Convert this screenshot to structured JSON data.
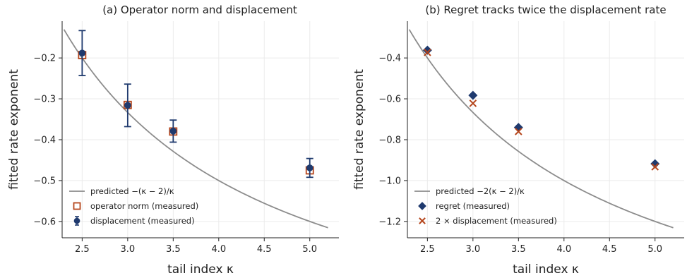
{
  "chart_data": [
    {
      "type": "scatter",
      "title": "(a) Operator norm and displacement",
      "xlabel": "tail index κ",
      "ylabel": "fitted rate exponent",
      "xlim": [
        2.28,
        5.32
      ],
      "ylim": [
        -0.64,
        -0.11
      ],
      "xticks": [
        2.5,
        3.0,
        3.5,
        4.0,
        4.5,
        5.0
      ],
      "xtick_labels": [
        "2.5",
        "3.0",
        "3.5",
        "4.0",
        "4.5",
        "5.0"
      ],
      "yticks": [
        -0.2,
        -0.3,
        -0.4,
        -0.5,
        -0.6
      ],
      "ytick_labels": [
        "−0.2",
        "−0.3",
        "−0.4",
        "−0.5",
        "−0.6"
      ],
      "grid": true,
      "legend_position": "lower-left",
      "curve": {
        "name": "predicted −(κ − 2)/κ",
        "formula": "-(k-2)/k",
        "x_range": [
          2.3,
          5.2
        ],
        "color": "#8c8c8c"
      },
      "series": [
        {
          "name": "operator norm (measured)",
          "marker": "open-square",
          "color": "#b5451b",
          "x": [
            2.5,
            3.0,
            3.5,
            5.0
          ],
          "y": [
            -0.193,
            -0.315,
            -0.38,
            -0.475
          ]
        },
        {
          "name": "displacement (measured)",
          "marker": "filled-circle",
          "color": "#1f3a6e",
          "x": [
            2.5,
            3.0,
            3.5,
            5.0
          ],
          "y": [
            -0.188,
            -0.316,
            -0.379,
            -0.469
          ],
          "err": [
            0.055,
            0.052,
            0.027,
            0.023
          ]
        }
      ]
    },
    {
      "type": "scatter",
      "title": "(b) Regret tracks twice the displacement rate",
      "xlabel": "tail index κ",
      "ylabel": "fitted rate exponent",
      "xlim": [
        2.28,
        5.32
      ],
      "ylim": [
        -1.28,
        -0.22
      ],
      "xticks": [
        2.5,
        3.0,
        3.5,
        4.0,
        4.5,
        5.0
      ],
      "xtick_labels": [
        "2.5",
        "3.0",
        "3.5",
        "4.0",
        "4.5",
        "5.0"
      ],
      "yticks": [
        -0.4,
        -0.6,
        -0.8,
        -1.0,
        -1.2
      ],
      "ytick_labels": [
        "−0.4",
        "−0.6",
        "−0.8",
        "−1.0",
        "−1.2"
      ],
      "grid": true,
      "legend_position": "lower-left",
      "curve": {
        "name": "predicted −2(κ − 2)/κ",
        "formula": "-2(k-2)/k",
        "x_range": [
          2.3,
          5.2
        ],
        "color": "#8c8c8c"
      },
      "series": [
        {
          "name": "regret (measured)",
          "marker": "filled-diamond",
          "color": "#1f3a6e",
          "x": [
            2.5,
            3.0,
            3.5,
            5.0
          ],
          "y": [
            -0.362,
            -0.583,
            -0.74,
            -0.918
          ]
        },
        {
          "name": "2 × displacement (measured)",
          "marker": "x",
          "color": "#b5451b",
          "x": [
            2.5,
            3.0,
            3.5,
            5.0
          ],
          "y": [
            -0.373,
            -0.622,
            -0.76,
            -0.933
          ]
        }
      ]
    }
  ]
}
